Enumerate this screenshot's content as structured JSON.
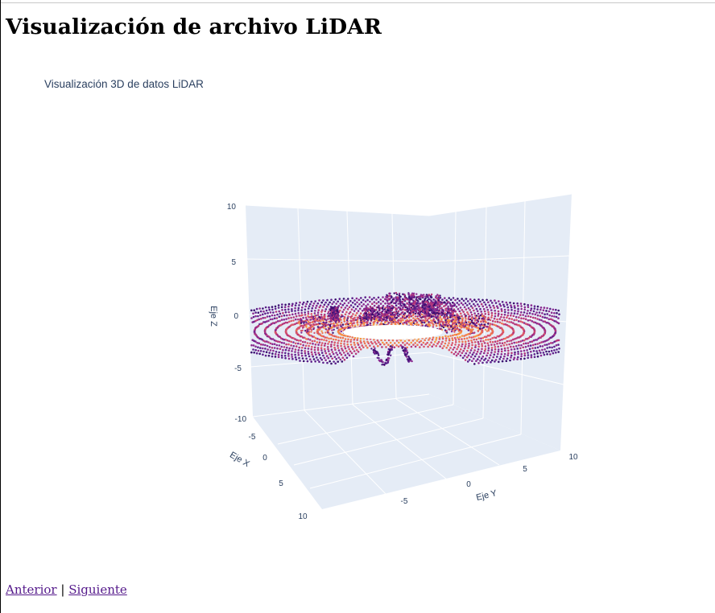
{
  "page": {
    "heading": "Visualización de archivo LiDAR",
    "nav": {
      "prev_label": "Anterior",
      "separator": "|",
      "next_label": "Siguiente"
    }
  },
  "chart_data": {
    "type": "scatter3d",
    "title": "Visualización 3D de datos LiDAR",
    "axes": {
      "x": {
        "label": "Eje X",
        "ticks": [
          "-5",
          "0",
          "5",
          "10"
        ]
      },
      "y": {
        "label": "Eje Y",
        "ticks": [
          "-5",
          "0",
          "5",
          "10"
        ]
      },
      "z": {
        "label": "Eje Z",
        "ticks": [
          "10",
          "5",
          "0",
          "-5",
          "-10"
        ],
        "range": [
          -10,
          10
        ]
      }
    },
    "colorscale": "plasma",
    "colors": {
      "scene_bg": "#e5ecf6",
      "grid": "#ffffff",
      "axis_text": "#2a3f5f",
      "low": "#3b0f70",
      "mid": "#b5367a",
      "high": "#f89540"
    },
    "description_points": "dense circular LiDAR scan rings around sensor origin with elevated objects near center"
  }
}
